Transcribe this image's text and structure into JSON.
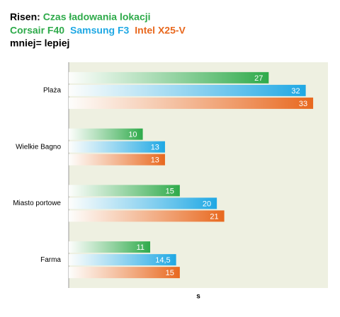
{
  "chart_data": {
    "type": "hbar",
    "title": "Risen:",
    "subtitle": "Czas ładowania lokacji",
    "note": "mniej= lepiej",
    "x_label": "s",
    "categories": [
      "Plaża",
      "Wielkie Bagno",
      "Miasto portowe",
      "Farma"
    ],
    "series": [
      {
        "name": "Corsair F40",
        "color": "#2eaa4a",
        "values": [
          27,
          10,
          15,
          11
        ]
      },
      {
        "name": "Samsung F3",
        "color": "#1fa8e4",
        "values": [
          32,
          13,
          20,
          14.5
        ],
        "value_labels": [
          "32",
          "13",
          "20",
          "14,5"
        ]
      },
      {
        "name": "Intel X25-V",
        "color": "#e8681e",
        "values": [
          33,
          13,
          21,
          15
        ]
      }
    ],
    "xlim": [
      0,
      35
    ],
    "grid": false
  }
}
